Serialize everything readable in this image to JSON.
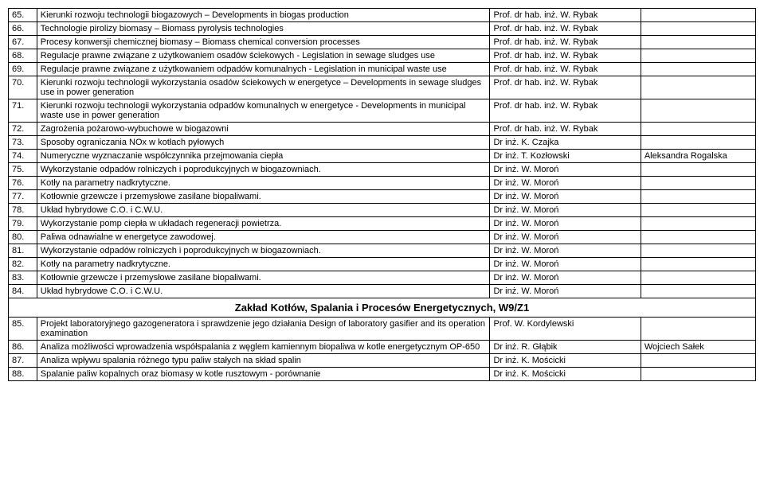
{
  "rows": [
    {
      "n": "65.",
      "topic": "Kierunki rozwoju technologii biogazowych – Developments in biogas production",
      "prof": "Prof. dr hab. inż. W. Rybak",
      "student": ""
    },
    {
      "n": "66.",
      "topic": "Technologie pirolizy biomasy – Biomass pyrolysis technologies",
      "prof": "Prof. dr hab. inż. W. Rybak",
      "student": ""
    },
    {
      "n": "67.",
      "topic": "Procesy konwersji chemicznej biomasy – Biomass chemical conversion processes",
      "prof": "Prof. dr hab. inż. W. Rybak",
      "student": ""
    },
    {
      "n": "68.",
      "topic": "Regulacje prawne związane z użytkowaniem osadów ściekowych - Legislation in sewage sludges use",
      "prof": "Prof. dr hab. inż. W. Rybak",
      "student": ""
    },
    {
      "n": "69.",
      "topic": "Regulacje prawne związane z użytkowaniem odpadów komunalnych - Legislation in municipal waste use",
      "prof": "Prof. dr hab. inż. W. Rybak",
      "student": ""
    },
    {
      "n": "70.",
      "topic": "Kierunki rozwoju technologii wykorzystania osadów ściekowych w energetyce – Developments in sewage sludges use in power generation",
      "prof": "Prof. dr hab. inż. W. Rybak",
      "student": ""
    },
    {
      "n": "71.",
      "topic": "Kierunki rozwoju technologii wykorzystania odpadów komunalnych w energetyce - Developments in municipal waste use in power generation",
      "prof": "Prof. dr hab. inż. W. Rybak",
      "student": ""
    },
    {
      "n": "72.",
      "topic": "Zagrożenia pożarowo-wybuchowe w biogazowni",
      "prof": "Prof. dr hab. inż. W. Rybak",
      "student": ""
    },
    {
      "n": "73.",
      "topic": "Sposoby ograniczania NOx w kotłach pyłowych",
      "prof": "Dr inż. K. Czajka",
      "student": ""
    },
    {
      "n": "74.",
      "topic": "Numeryczne wyznaczanie współczynnika przejmowania ciepła",
      "prof": "Dr inż. T. Kozłowski",
      "student": "Aleksandra Rogalska"
    },
    {
      "n": "75.",
      "topic": "Wykorzystanie odpadów rolniczych i poprodukcyjnych w biogazowniach.",
      "prof": "Dr inż. W. Moroń",
      "student": ""
    },
    {
      "n": "76.",
      "topic": "Kotły na parametry nadkrytyczne.",
      "prof": "Dr inż. W. Moroń",
      "student": ""
    },
    {
      "n": "77.",
      "topic": "Kotłownie grzewcze i przemysłowe zasilane biopaliwami.",
      "prof": "Dr inż. W. Moroń",
      "student": ""
    },
    {
      "n": "78.",
      "topic": "Układ hybrydowe C.O. i C.W.U.",
      "prof": "Dr inż. W. Moroń",
      "student": ""
    },
    {
      "n": "79.",
      "topic": "Wykorzystanie pomp ciepła w układach regeneracji powietrza.",
      "prof": "Dr inż. W. Moroń",
      "student": ""
    },
    {
      "n": "80.",
      "topic": "Paliwa odnawialne w energetyce zawodowej.",
      "prof": "Dr inż. W. Moroń",
      "student": ""
    },
    {
      "n": "81.",
      "topic": "Wykorzystanie odpadów rolniczych i poprodukcyjnych w biogazowniach.",
      "prof": "Dr inż. W. Moroń",
      "student": ""
    },
    {
      "n": "82.",
      "topic": "Kotły na parametry nadkrytyczne.",
      "prof": "Dr inż. W. Moroń",
      "student": ""
    },
    {
      "n": "83.",
      "topic": "Kotłownie grzewcze i przemysłowe zasilane biopaliwami.",
      "prof": "Dr inż. W. Moroń",
      "student": ""
    },
    {
      "n": "84.",
      "topic": "Układ hybrydowe C.O. i C.W.U.",
      "prof": "Dr inż. W. Moroń",
      "student": ""
    }
  ],
  "section_header": "Zakład Kotłów, Spalania i Procesów Energetycznych, W9/Z1",
  "rows2": [
    {
      "n": "85.",
      "topic": "Projekt laboratoryjnego gazogeneratora i sprawdzenie jego działania\nDesign of laboratory gasifier and its operation examination",
      "prof": "Prof. W. Kordylewski",
      "student": ""
    },
    {
      "n": "86.",
      "topic": "Analiza możliwości wprowadzenia współspalania z węglem kamiennym biopaliwa w kotle energetycznym OP-650",
      "prof": "Dr inż. R. Głąbik",
      "student": "Wojciech Sałek"
    },
    {
      "n": "87.",
      "topic": "Analiza wpływu spalania różnego typu paliw stałych na skład spalin",
      "prof": "Dr inż. K. Mościcki",
      "student": ""
    },
    {
      "n": "88.",
      "topic": "Spalanie paliw kopalnych oraz biomasy w kotle rusztowym - porównanie",
      "prof": "Dr inż. K. Mościcki",
      "student": ""
    }
  ]
}
